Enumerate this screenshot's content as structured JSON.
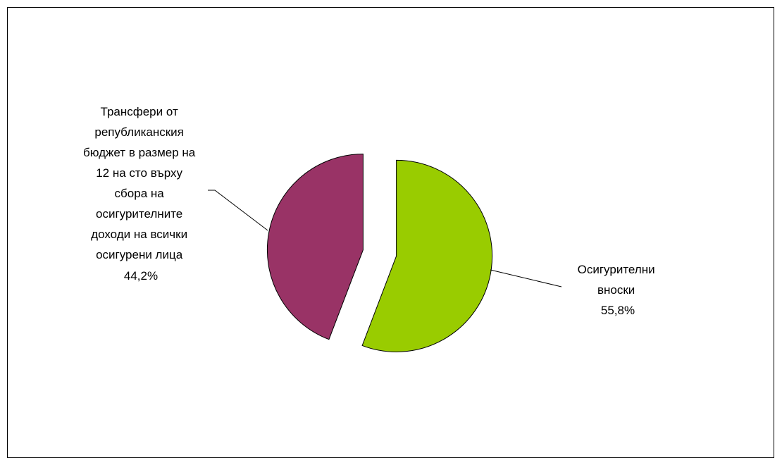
{
  "chart_data": {
    "type": "pie",
    "title": "",
    "slices": [
      {
        "label_lines": [
          "Осигурителни",
          "вноски"
        ],
        "value": 55.8,
        "value_label": "55,8%",
        "color": "#99CC00"
      },
      {
        "label_lines": [
          "Трансфери от",
          "републиканския",
          "бюджет в размер на",
          "12 на сто върху",
          "сбора на",
          "осигурителните",
          "доходи на всички",
          "осигурени лица"
        ],
        "value": 44.2,
        "value_label": "44,2%",
        "color": "#993366"
      }
    ],
    "legend": "none"
  }
}
